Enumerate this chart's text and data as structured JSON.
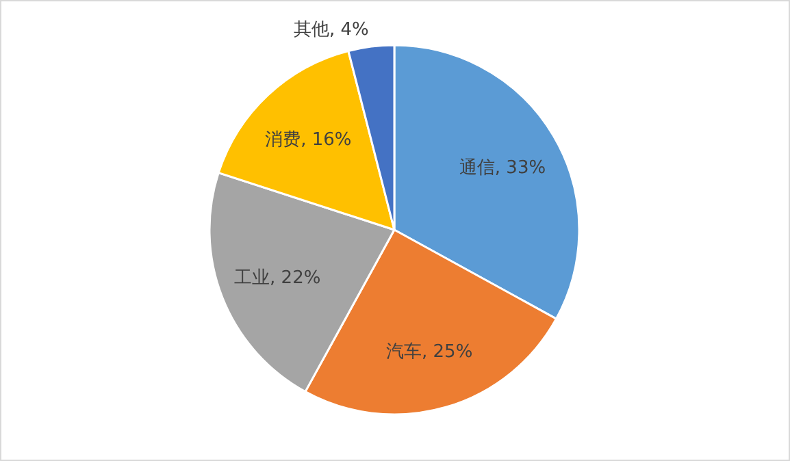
{
  "chart_data": {
    "type": "pie",
    "categories": [
      "通信",
      "汽车",
      "工业",
      "消费",
      "其他"
    ],
    "values": [
      33,
      25,
      22,
      16,
      4
    ],
    "colors": [
      "#5b9bd5",
      "#ed7d31",
      "#a5a5a5",
      "#ffc000",
      "#4472c4"
    ],
    "value_labels": [
      ", 33%",
      ", 25%",
      ", 22%",
      ", 16%",
      ", 4%"
    ]
  }
}
